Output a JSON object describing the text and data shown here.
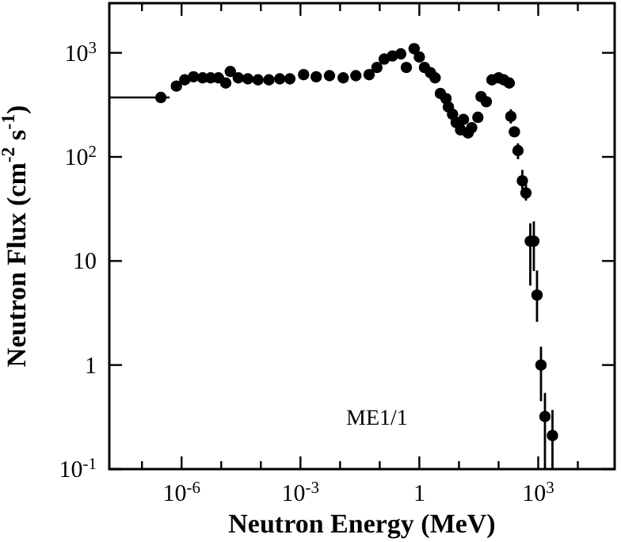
{
  "chart_data": {
    "type": "scatter",
    "xlabel": "Neutron Energy (MeV)",
    "ylabel": "Neutron Flux (cm$^{-2}$ s$^{-1}$)",
    "annotations": [
      "ME1/1"
    ],
    "log": "xy",
    "grid": false,
    "marker": "circle",
    "xlim": [
      1.5e-08,
      85000
    ],
    "ylim": [
      0.1,
      3000
    ],
    "xticks": [
      {
        "value": 1e-07,
        "label": null
      },
      {
        "value": 1e-06,
        "label": "10$^{-6}$"
      },
      {
        "value": 1e-05,
        "label": null
      },
      {
        "value": 0.0001,
        "label": null
      },
      {
        "value": 0.001,
        "label": "10$^{-3}$"
      },
      {
        "value": 0.01,
        "label": null
      },
      {
        "value": 0.1,
        "label": null
      },
      1,
      {
        "value": 10,
        "label": null
      },
      {
        "value": 100,
        "label": null
      },
      {
        "value": 1000,
        "label": "10$^{3}$"
      },
      {
        "value": 10000,
        "label": null
      }
    ],
    "yticks": [
      {
        "value": 0.1,
        "label": "10$^{-1}$"
      },
      1,
      10,
      {
        "value": 100,
        "label": "10$^{2}$"
      },
      {
        "value": 1000,
        "label": "10$^{3}$"
      }
    ],
    "x": [
      3e-07,
      7.4e-07,
      1.2e-06,
      2e-06,
      3.4e-06,
      5.4e-06,
      8.5e-06,
      1.3e-05,
      1.7e-05,
      2.7e-05,
      4.7e-05,
      8.5e-05,
      0.00016,
      0.0003,
      0.00054,
      0.0012,
      0.0025,
      0.0054,
      0.012,
      0.025,
      0.054,
      0.085,
      0.13,
      0.21,
      0.34,
      0.47,
      0.74,
      1.0,
      1.35,
      1.9,
      2.5,
      3.4,
      4.7,
      5.4,
      6.9,
      8.5,
      11,
      13,
      17,
      21,
      30,
      36,
      49,
      68,
      100,
      135,
      186,
      204,
      251,
      309,
      398,
      490,
      631,
      776,
      933,
      1175,
      1479,
      2291
    ],
    "series": [
      {
        "color": "#000000",
        "values": [
          372,
          479,
          550,
          589,
          575,
          575,
          575,
          513,
          661,
          575,
          562,
          550,
          550,
          562,
          562,
          617,
          589,
          603,
          575,
          603,
          617,
          724,
          871,
          933,
          977,
          724,
          1096,
          912,
          724,
          646,
          575,
          407,
          363,
          302,
          257,
          214,
          182,
          229,
          170,
          191,
          240,
          380,
          339,
          550,
          575,
          550,
          513,
          245,
          174,
          115,
          59,
          45,
          15.5,
          15.5,
          4.7,
          1.0,
          0.32,
          0.21
        ],
        "errors": [
          null,
          null,
          null,
          null,
          null,
          null,
          null,
          null,
          null,
          null,
          null,
          null,
          null,
          null,
          null,
          null,
          null,
          null,
          null,
          null,
          null,
          null,
          null,
          null,
          null,
          null,
          null,
          null,
          null,
          null,
          null,
          null,
          null,
          null,
          null,
          null,
          null,
          null,
          null,
          null,
          null,
          null,
          null,
          null,
          null,
          null,
          null,
          [
            209,
            287
          ],
          null,
          [
            95,
            135
          ],
          [
            47,
            75
          ],
          [
            38,
            55
          ],
          [
            5.8,
            23
          ],
          [
            8,
            24
          ],
          [
            2.6,
            8.1
          ],
          [
            0.45,
            1.5
          ],
          [
            0.1,
            0.54
          ],
          [
            0.1,
            0.37
          ]
        ],
        "xerrors": [
          [
            1.5e-08,
            5e-07
          ],
          null,
          null,
          null,
          null,
          null,
          null,
          null,
          null,
          null,
          null,
          null,
          null,
          null,
          null,
          null,
          null,
          null,
          null,
          null,
          null,
          null,
          null,
          null,
          null,
          null,
          null,
          null,
          null,
          null,
          null,
          null,
          null,
          null,
          null,
          null,
          null,
          null,
          null,
          null,
          null,
          null,
          null,
          null,
          null,
          null,
          null,
          null,
          null,
          null,
          null,
          null,
          null,
          null,
          null,
          null,
          null,
          null
        ]
      }
    ]
  }
}
